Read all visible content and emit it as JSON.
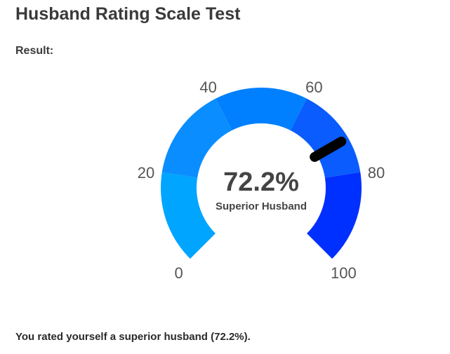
{
  "header": {
    "title": "Husband Rating Scale Test",
    "result_label": "Result:"
  },
  "chart_data": {
    "type": "gauge",
    "values": [
      72.2
    ],
    "value_labels": [
      "72.2%"
    ],
    "label": "Superior Husband",
    "ylim": [
      0,
      100
    ],
    "yticks": [
      0,
      20,
      40,
      60,
      80,
      100
    ],
    "band_colors": [
      "#00a5ff",
      "#0a8dff",
      "#0080ff",
      "#0a5cff",
      "#0030ff"
    ],
    "needle_color": "#000000"
  },
  "footer": {
    "text": "You rated yourself a superior husband (72.2%)."
  }
}
